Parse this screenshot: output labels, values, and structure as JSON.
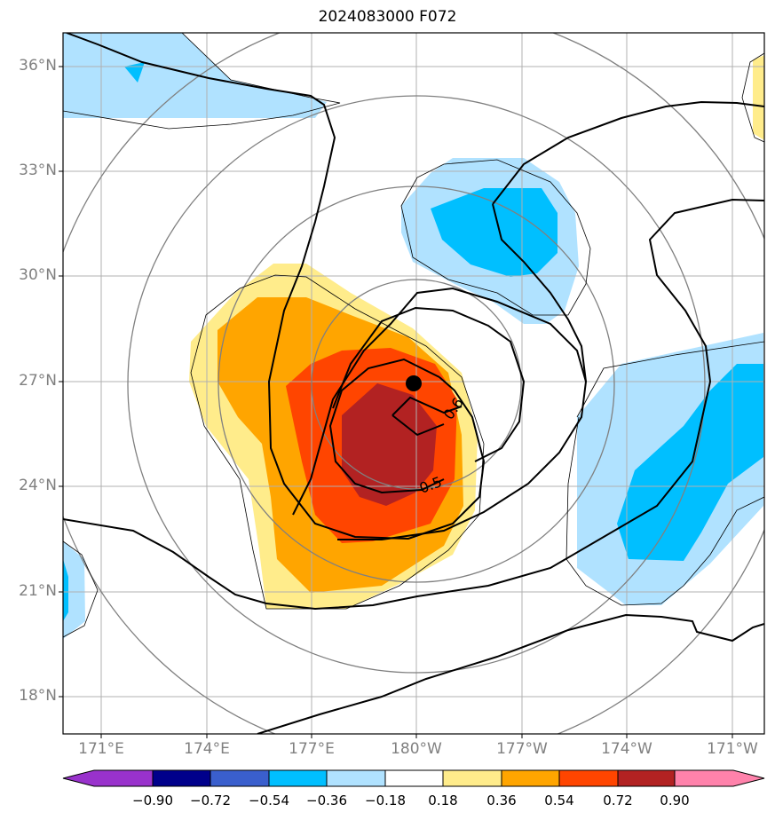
{
  "title": "2024083000 F072",
  "map": {
    "lat_ticks": [
      "36°N",
      "33°N",
      "30°N",
      "27°N",
      "24°N",
      "21°N",
      "18°N"
    ],
    "lon_ticks": [
      "171°E",
      "174°E",
      "177°E",
      "180°W",
      "177°W",
      "174°W",
      "171°W"
    ],
    "center_marker": {
      "lat": 27.0,
      "lon": 180.0
    },
    "contour_labels": [
      "0.6",
      "0.5"
    ]
  },
  "colorbar": {
    "ticks": [
      "−0.90",
      "−0.72",
      "−0.54",
      "−0.36",
      "−0.18",
      "0.18",
      "0.36",
      "0.54",
      "0.72",
      "0.90"
    ],
    "colors": [
      "#9932cc",
      "#00008b",
      "#3a5fcd",
      "#00bfff",
      "#b0e2ff",
      "#ffffff",
      "#ffec8b",
      "#ffa500",
      "#ff4500",
      "#b22222",
      "#ff82ab"
    ]
  }
}
